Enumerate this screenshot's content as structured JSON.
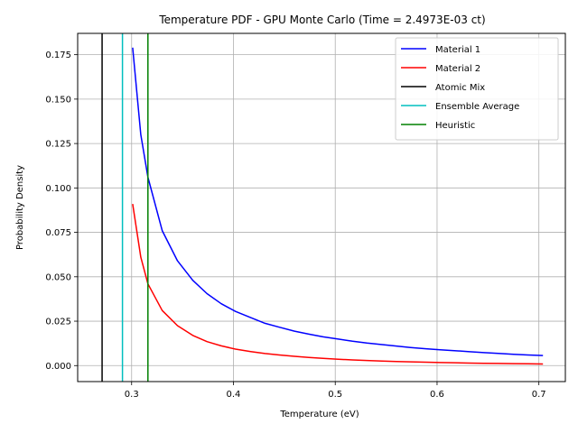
{
  "chart_data": {
    "type": "line",
    "title": "Temperature PDF - GPU Monte Carlo (Time = 2.4973E-03 ct)",
    "xlabel": "Temperature (eV)",
    "ylabel": "Probability Density",
    "xlim": [
      0.247,
      0.726
    ],
    "ylim": [
      -0.009,
      0.187
    ],
    "grid": true,
    "legend_position": "top-right",
    "xticks": [
      0.3,
      0.4,
      0.5,
      0.6,
      0.7
    ],
    "xtick_labels": [
      "0.3",
      "0.4",
      "0.5",
      "0.6",
      "0.7"
    ],
    "yticks": [
      0.0,
      0.025,
      0.05,
      0.075,
      0.1,
      0.125,
      0.15,
      0.175
    ],
    "ytick_labels": [
      "0.000",
      "0.025",
      "0.050",
      "0.075",
      "0.100",
      "0.125",
      "0.150",
      "0.175"
    ],
    "series": [
      {
        "name": "Material 1",
        "color": "#0000ff",
        "kind": "curve",
        "x": [
          0.301,
          0.309,
          0.316,
          0.33,
          0.345,
          0.36,
          0.374,
          0.388,
          0.402,
          0.417,
          0.431,
          0.445,
          0.46,
          0.474,
          0.488,
          0.503,
          0.517,
          0.531,
          0.546,
          0.56,
          0.574,
          0.589,
          0.603,
          0.617,
          0.632,
          0.646,
          0.66,
          0.675,
          0.689,
          0.704
        ],
        "values": [
          0.179,
          0.13,
          0.106,
          0.076,
          0.059,
          0.048,
          0.0405,
          0.0348,
          0.0305,
          0.027,
          0.0238,
          0.0216,
          0.0194,
          0.0177,
          0.0162,
          0.0149,
          0.0137,
          0.0127,
          0.0118,
          0.011,
          0.0102,
          0.0095,
          0.0089,
          0.0084,
          0.0078,
          0.0073,
          0.0069,
          0.0064,
          0.006,
          0.0057
        ]
      },
      {
        "name": "Material 2",
        "color": "#ff0000",
        "kind": "curve",
        "x": [
          0.301,
          0.309,
          0.316,
          0.33,
          0.345,
          0.36,
          0.374,
          0.388,
          0.402,
          0.417,
          0.431,
          0.445,
          0.46,
          0.474,
          0.488,
          0.503,
          0.517,
          0.531,
          0.546,
          0.56,
          0.574,
          0.589,
          0.603,
          0.617,
          0.632,
          0.646,
          0.66,
          0.675,
          0.689,
          0.704
        ],
        "values": [
          0.091,
          0.061,
          0.046,
          0.031,
          0.0225,
          0.017,
          0.0135,
          0.0111,
          0.0093,
          0.0079,
          0.0068,
          0.006,
          0.0052,
          0.0046,
          0.0041,
          0.0036,
          0.0032,
          0.0029,
          0.0026,
          0.0023,
          0.0021,
          0.0019,
          0.0017,
          0.0016,
          0.0014,
          0.0013,
          0.0012,
          0.0011,
          0.001,
          0.0009
        ]
      },
      {
        "name": "Atomic Mix",
        "color": "#000000",
        "kind": "vline",
        "x": 0.271
      },
      {
        "name": "Ensemble Average",
        "color": "#00bfbf",
        "kind": "vline",
        "x": 0.291
      },
      {
        "name": "Heuristic",
        "color": "#008000",
        "kind": "vline",
        "x": 0.316
      }
    ]
  }
}
